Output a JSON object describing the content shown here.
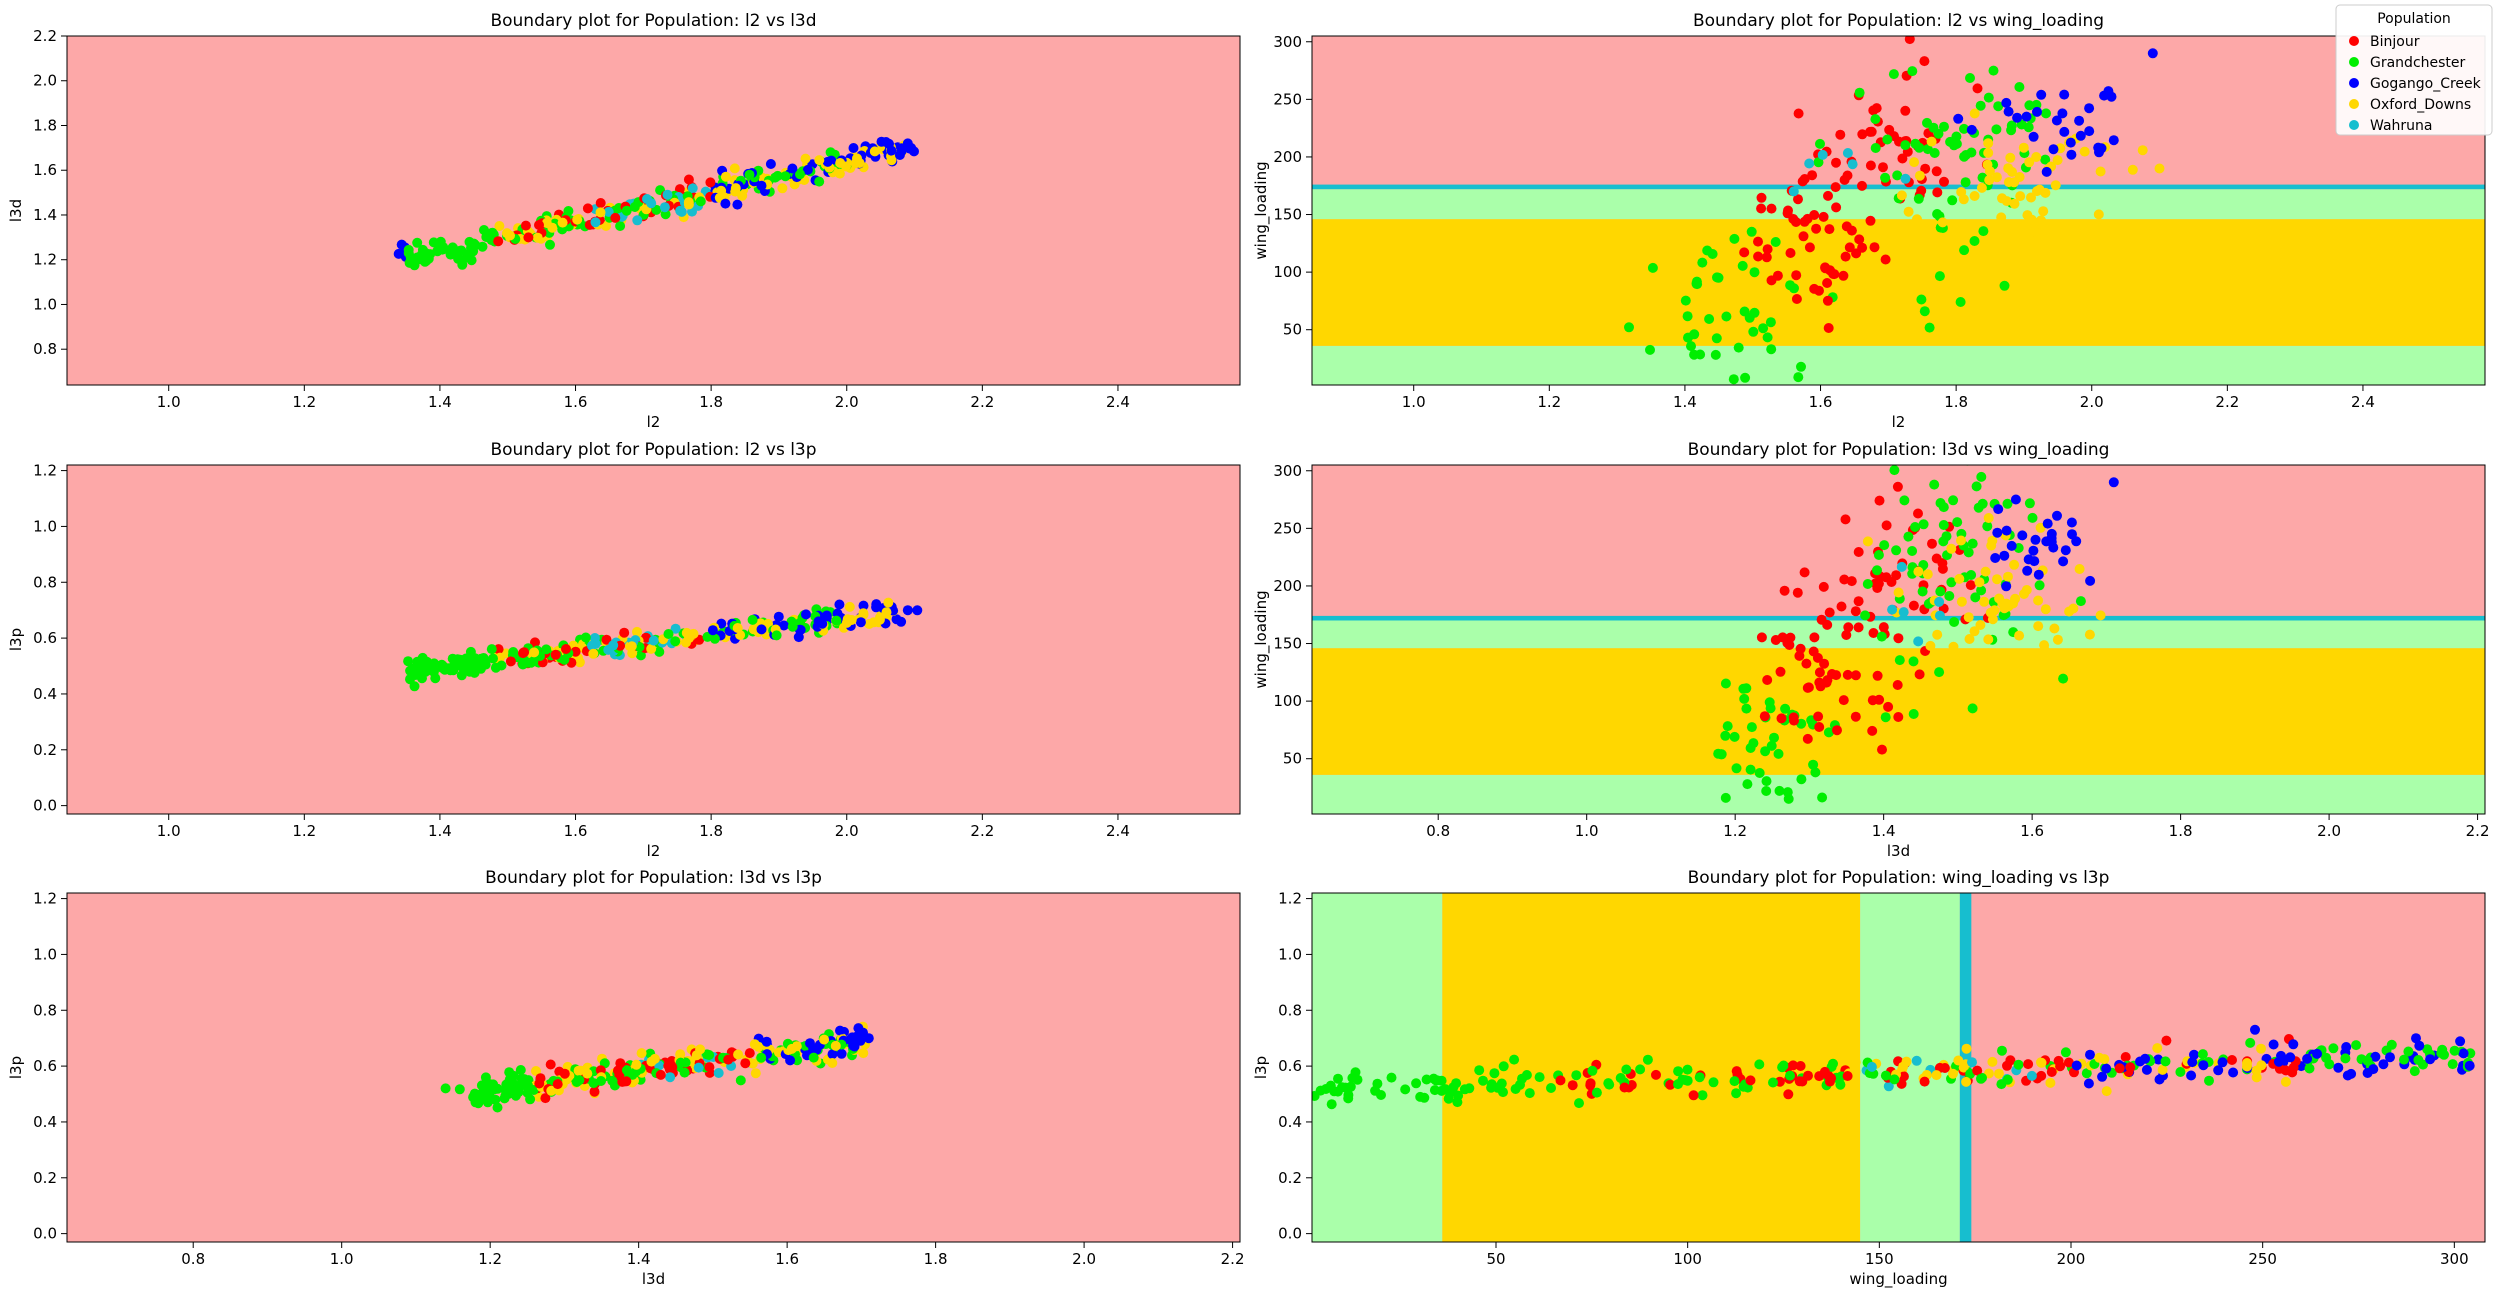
{
  "colors": {
    "background_red": "#fda8a8",
    "region_green": "#aaffaa",
    "region_yellow": "#ffd700",
    "region_cyan": "#17becf"
  },
  "legend": {
    "title": "Population",
    "location": "upper-right",
    "entries": [
      {
        "label": "Binjour",
        "color": "#ff0000"
      },
      {
        "label": "Grandchester",
        "color": "#00ee00"
      },
      {
        "label": "Gogango_Creek",
        "color": "#0000ff"
      },
      {
        "label": "Oxford_Downs",
        "color": "#ffd700"
      },
      {
        "label": "Wahruna",
        "color": "#17becf"
      }
    ]
  },
  "chart_data": [
    {
      "type": "scatter",
      "title": "Boundary plot for Population: l2 vs l3d",
      "xlabel": "l2",
      "ylabel": "l3d",
      "xlim": [
        0.85,
        2.58
      ],
      "ylim": [
        0.64,
        2.2
      ],
      "xticks": [
        "1.0",
        "1.2",
        "1.4",
        "1.6",
        "1.8",
        "2.0",
        "2.2",
        "2.4"
      ],
      "yticks": [
        "0.8",
        "1.0",
        "1.2",
        "1.4",
        "1.6",
        "1.8",
        "2.0",
        "2.2"
      ],
      "regions": [],
      "points": {
        "mode": "line",
        "x": [
          1.35,
          2.09
        ],
        "y": [
          1.2,
          1.7
        ],
        "spread_x": 0.03,
        "spread_y": 0.03,
        "count": 330,
        "rng_seed": 11,
        "bands": [
          [
            1.35,
            1.48,
            [
              1
            ]
          ],
          [
            1.48,
            1.62,
            [
              0,
              1,
              3
            ]
          ],
          [
            1.62,
            1.8,
            [
              0,
              1,
              3,
              4
            ]
          ],
          [
            1.8,
            2.0,
            [
              1,
              3,
              2
            ]
          ],
          [
            2.0,
            2.1,
            [
              2,
              3
            ]
          ]
        ],
        "extras": [
          {
            "x": 2.09,
            "y": 1.72,
            "c": 2
          }
        ]
      }
    },
    {
      "type": "scatter",
      "title": "Boundary plot for Population: l2 vs wing_loading",
      "xlabel": "l2",
      "ylabel": "wing_loading",
      "xlim": [
        0.85,
        2.58
      ],
      "ylim": [
        2,
        305
      ],
      "xticks": [
        "1.0",
        "1.2",
        "1.4",
        "1.6",
        "1.8",
        "2.0",
        "2.2",
        "2.4"
      ],
      "yticks": [
        "50",
        "100",
        "150",
        "200",
        "250",
        "300"
      ],
      "regions": [
        {
          "axis": "y",
          "from": 2,
          "to": 36,
          "color": "#aaffaa"
        },
        {
          "axis": "y",
          "from": 36,
          "to": 146,
          "color": "#ffd700"
        },
        {
          "axis": "y",
          "from": 146,
          "to": 172,
          "color": "#aaffaa"
        },
        {
          "axis": "y",
          "from": 172,
          "to": 176,
          "color": "#17becf"
        }
      ],
      "points": {
        "mode": "cloud",
        "rng_seed": 23,
        "clusters": [
          {
            "cx": 1.48,
            "cy": 60,
            "sx": 0.06,
            "sy": 30,
            "n": 45,
            "c": 1
          },
          {
            "cx": 1.57,
            "cy": 130,
            "sx": 0.05,
            "sy": 35,
            "n": 55,
            "c": 0
          },
          {
            "cx": 1.7,
            "cy": 200,
            "sx": 0.06,
            "sy": 40,
            "n": 45,
            "c": 0
          },
          {
            "cx": 1.8,
            "cy": 200,
            "sx": 0.08,
            "sy": 50,
            "n": 70,
            "c": 1
          },
          {
            "cx": 1.88,
            "cy": 175,
            "sx": 0.08,
            "sy": 30,
            "n": 60,
            "c": 3
          },
          {
            "cx": 1.95,
            "cy": 235,
            "sx": 0.05,
            "sy": 20,
            "n": 28,
            "c": 2
          },
          {
            "cx": 1.65,
            "cy": 190,
            "sx": 0.04,
            "sy": 15,
            "n": 6,
            "c": 4
          }
        ],
        "extras": [
          {
            "x": 2.09,
            "y": 290,
            "c": 2
          },
          {
            "x": 2.1,
            "y": 190,
            "c": 3
          }
        ]
      }
    },
    {
      "type": "scatter",
      "title": "Boundary plot for Population: l2 vs l3p",
      "xlabel": "l2",
      "ylabel": "l3p",
      "xlim": [
        0.85,
        2.58
      ],
      "ylim": [
        -0.03,
        1.22
      ],
      "xticks": [
        "1.0",
        "1.2",
        "1.4",
        "1.6",
        "1.8",
        "2.0",
        "2.2",
        "2.4"
      ],
      "yticks": [
        "0.0",
        "0.2",
        "0.4",
        "0.6",
        "0.8",
        "1.0",
        "1.2"
      ],
      "regions": [],
      "points": {
        "mode": "line",
        "x": [
          1.35,
          2.09
        ],
        "y": [
          0.48,
          0.7
        ],
        "spread_x": 0.03,
        "spread_y": 0.02,
        "count": 330,
        "rng_seed": 37,
        "bands": [
          [
            1.35,
            1.48,
            [
              1
            ]
          ],
          [
            1.48,
            1.62,
            [
              0,
              1,
              3
            ]
          ],
          [
            1.62,
            1.8,
            [
              0,
              1,
              3,
              4
            ]
          ],
          [
            1.8,
            2.0,
            [
              1,
              3,
              2
            ]
          ],
          [
            2.0,
            2.1,
            [
              2,
              3
            ]
          ]
        ],
        "extras": [
          {
            "x": 2.09,
            "y": 0.7,
            "c": 2
          }
        ]
      }
    },
    {
      "type": "scatter",
      "title": "Boundary plot for Population: l3d vs wing_loading",
      "xlabel": "l3d",
      "ylabel": "wing_loading",
      "xlim": [
        0.63,
        2.21
      ],
      "ylim": [
        2,
        305
      ],
      "xticks": [
        "0.8",
        "1.0",
        "1.2",
        "1.4",
        "1.6",
        "1.8",
        "2.0",
        "2.2"
      ],
      "yticks": [
        "50",
        "100",
        "150",
        "200",
        "250",
        "300"
      ],
      "regions": [
        {
          "axis": "y",
          "from": 2,
          "to": 36,
          "color": "#aaffaa"
        },
        {
          "axis": "y",
          "from": 36,
          "to": 146,
          "color": "#ffd700"
        },
        {
          "axis": "y",
          "from": 146,
          "to": 170,
          "color": "#aaffaa"
        },
        {
          "axis": "y",
          "from": 170,
          "to": 174,
          "color": "#17becf"
        }
      ],
      "points": {
        "mode": "cloud",
        "rng_seed": 51,
        "clusters": [
          {
            "cx": 1.24,
            "cy": 60,
            "sx": 0.05,
            "sy": 30,
            "n": 45,
            "c": 1
          },
          {
            "cx": 1.32,
            "cy": 130,
            "sx": 0.05,
            "sy": 35,
            "n": 55,
            "c": 0
          },
          {
            "cx": 1.42,
            "cy": 200,
            "sx": 0.05,
            "sy": 40,
            "n": 45,
            "c": 0
          },
          {
            "cx": 1.5,
            "cy": 210,
            "sx": 0.07,
            "sy": 50,
            "n": 70,
            "c": 1
          },
          {
            "cx": 1.56,
            "cy": 180,
            "sx": 0.06,
            "sy": 30,
            "n": 60,
            "c": 3
          },
          {
            "cx": 1.62,
            "cy": 235,
            "sx": 0.04,
            "sy": 20,
            "n": 28,
            "c": 2
          },
          {
            "cx": 1.45,
            "cy": 190,
            "sx": 0.03,
            "sy": 15,
            "n": 6,
            "c": 4
          }
        ],
        "extras": [
          {
            "x": 1.71,
            "y": 290,
            "c": 2
          }
        ]
      }
    },
    {
      "type": "scatter",
      "title": "Boundary plot for Population: l3d vs l3p",
      "xlabel": "l3d",
      "ylabel": "l3p",
      "xlim": [
        0.63,
        2.21
      ],
      "ylim": [
        -0.03,
        1.22
      ],
      "xticks": [
        "0.8",
        "1.0",
        "1.2",
        "1.4",
        "1.6",
        "1.8",
        "2.0",
        "2.2"
      ],
      "yticks": [
        "0.0",
        "0.2",
        "0.4",
        "0.6",
        "0.8",
        "1.0",
        "1.2"
      ],
      "regions": [],
      "points": {
        "mode": "line",
        "x": [
          1.17,
          1.7
        ],
        "y": [
          0.5,
          0.69
        ],
        "spread_x": 0.03,
        "spread_y": 0.025,
        "count": 320,
        "rng_seed": 67,
        "bands": [
          [
            1.14,
            1.26,
            [
              1
            ]
          ],
          [
            1.26,
            1.4,
            [
              0,
              1,
              3
            ]
          ],
          [
            1.4,
            1.55,
            [
              0,
              1,
              3,
              4
            ]
          ],
          [
            1.55,
            1.72,
            [
              1,
              3,
              2
            ]
          ]
        ],
        "extras": [
          {
            "x": 1.14,
            "y": 0.52,
            "c": 1
          },
          {
            "x": 1.71,
            "y": 0.7,
            "c": 2
          }
        ]
      }
    },
    {
      "type": "scatter",
      "title": "Boundary plot for Population: wing_loading vs l3p",
      "xlabel": "wing_loading",
      "ylabel": "l3p",
      "xlim": [
        2,
        308
      ],
      "ylim": [
        -0.03,
        1.22
      ],
      "xticks": [
        "50",
        "100",
        "150",
        "200",
        "250",
        "300"
      ],
      "yticks": [
        "0.0",
        "0.2",
        "0.4",
        "0.6",
        "0.8",
        "1.0",
        "1.2"
      ],
      "regions": [
        {
          "axis": "x",
          "from": 2,
          "to": 36,
          "color": "#aaffaa"
        },
        {
          "axis": "x",
          "from": 36,
          "to": 145,
          "color": "#ffd700"
        },
        {
          "axis": "x",
          "from": 145,
          "to": 171,
          "color": "#aaffaa"
        },
        {
          "axis": "x",
          "from": 171,
          "to": 174,
          "color": "#17becf"
        }
      ],
      "points": {
        "mode": "band",
        "x": [
          2,
          306
        ],
        "y": [
          0.51,
          0.64
        ],
        "spread_y": 0.03,
        "count": 360,
        "rng_seed": 83,
        "bands": [
          [
            2,
            60,
            [
              1
            ]
          ],
          [
            60,
            140,
            [
              0,
              1
            ]
          ],
          [
            140,
            200,
            [
              0,
              1,
              3,
              4
            ]
          ],
          [
            200,
            260,
            [
              1,
              3,
              2,
              0
            ]
          ],
          [
            260,
            308,
            [
              1,
              2
            ]
          ]
        ],
        "extras": [
          {
            "x": 290,
            "y": 0.7,
            "c": 2
          },
          {
            "x": 248,
            "y": 0.73,
            "c": 2
          }
        ]
      }
    }
  ]
}
